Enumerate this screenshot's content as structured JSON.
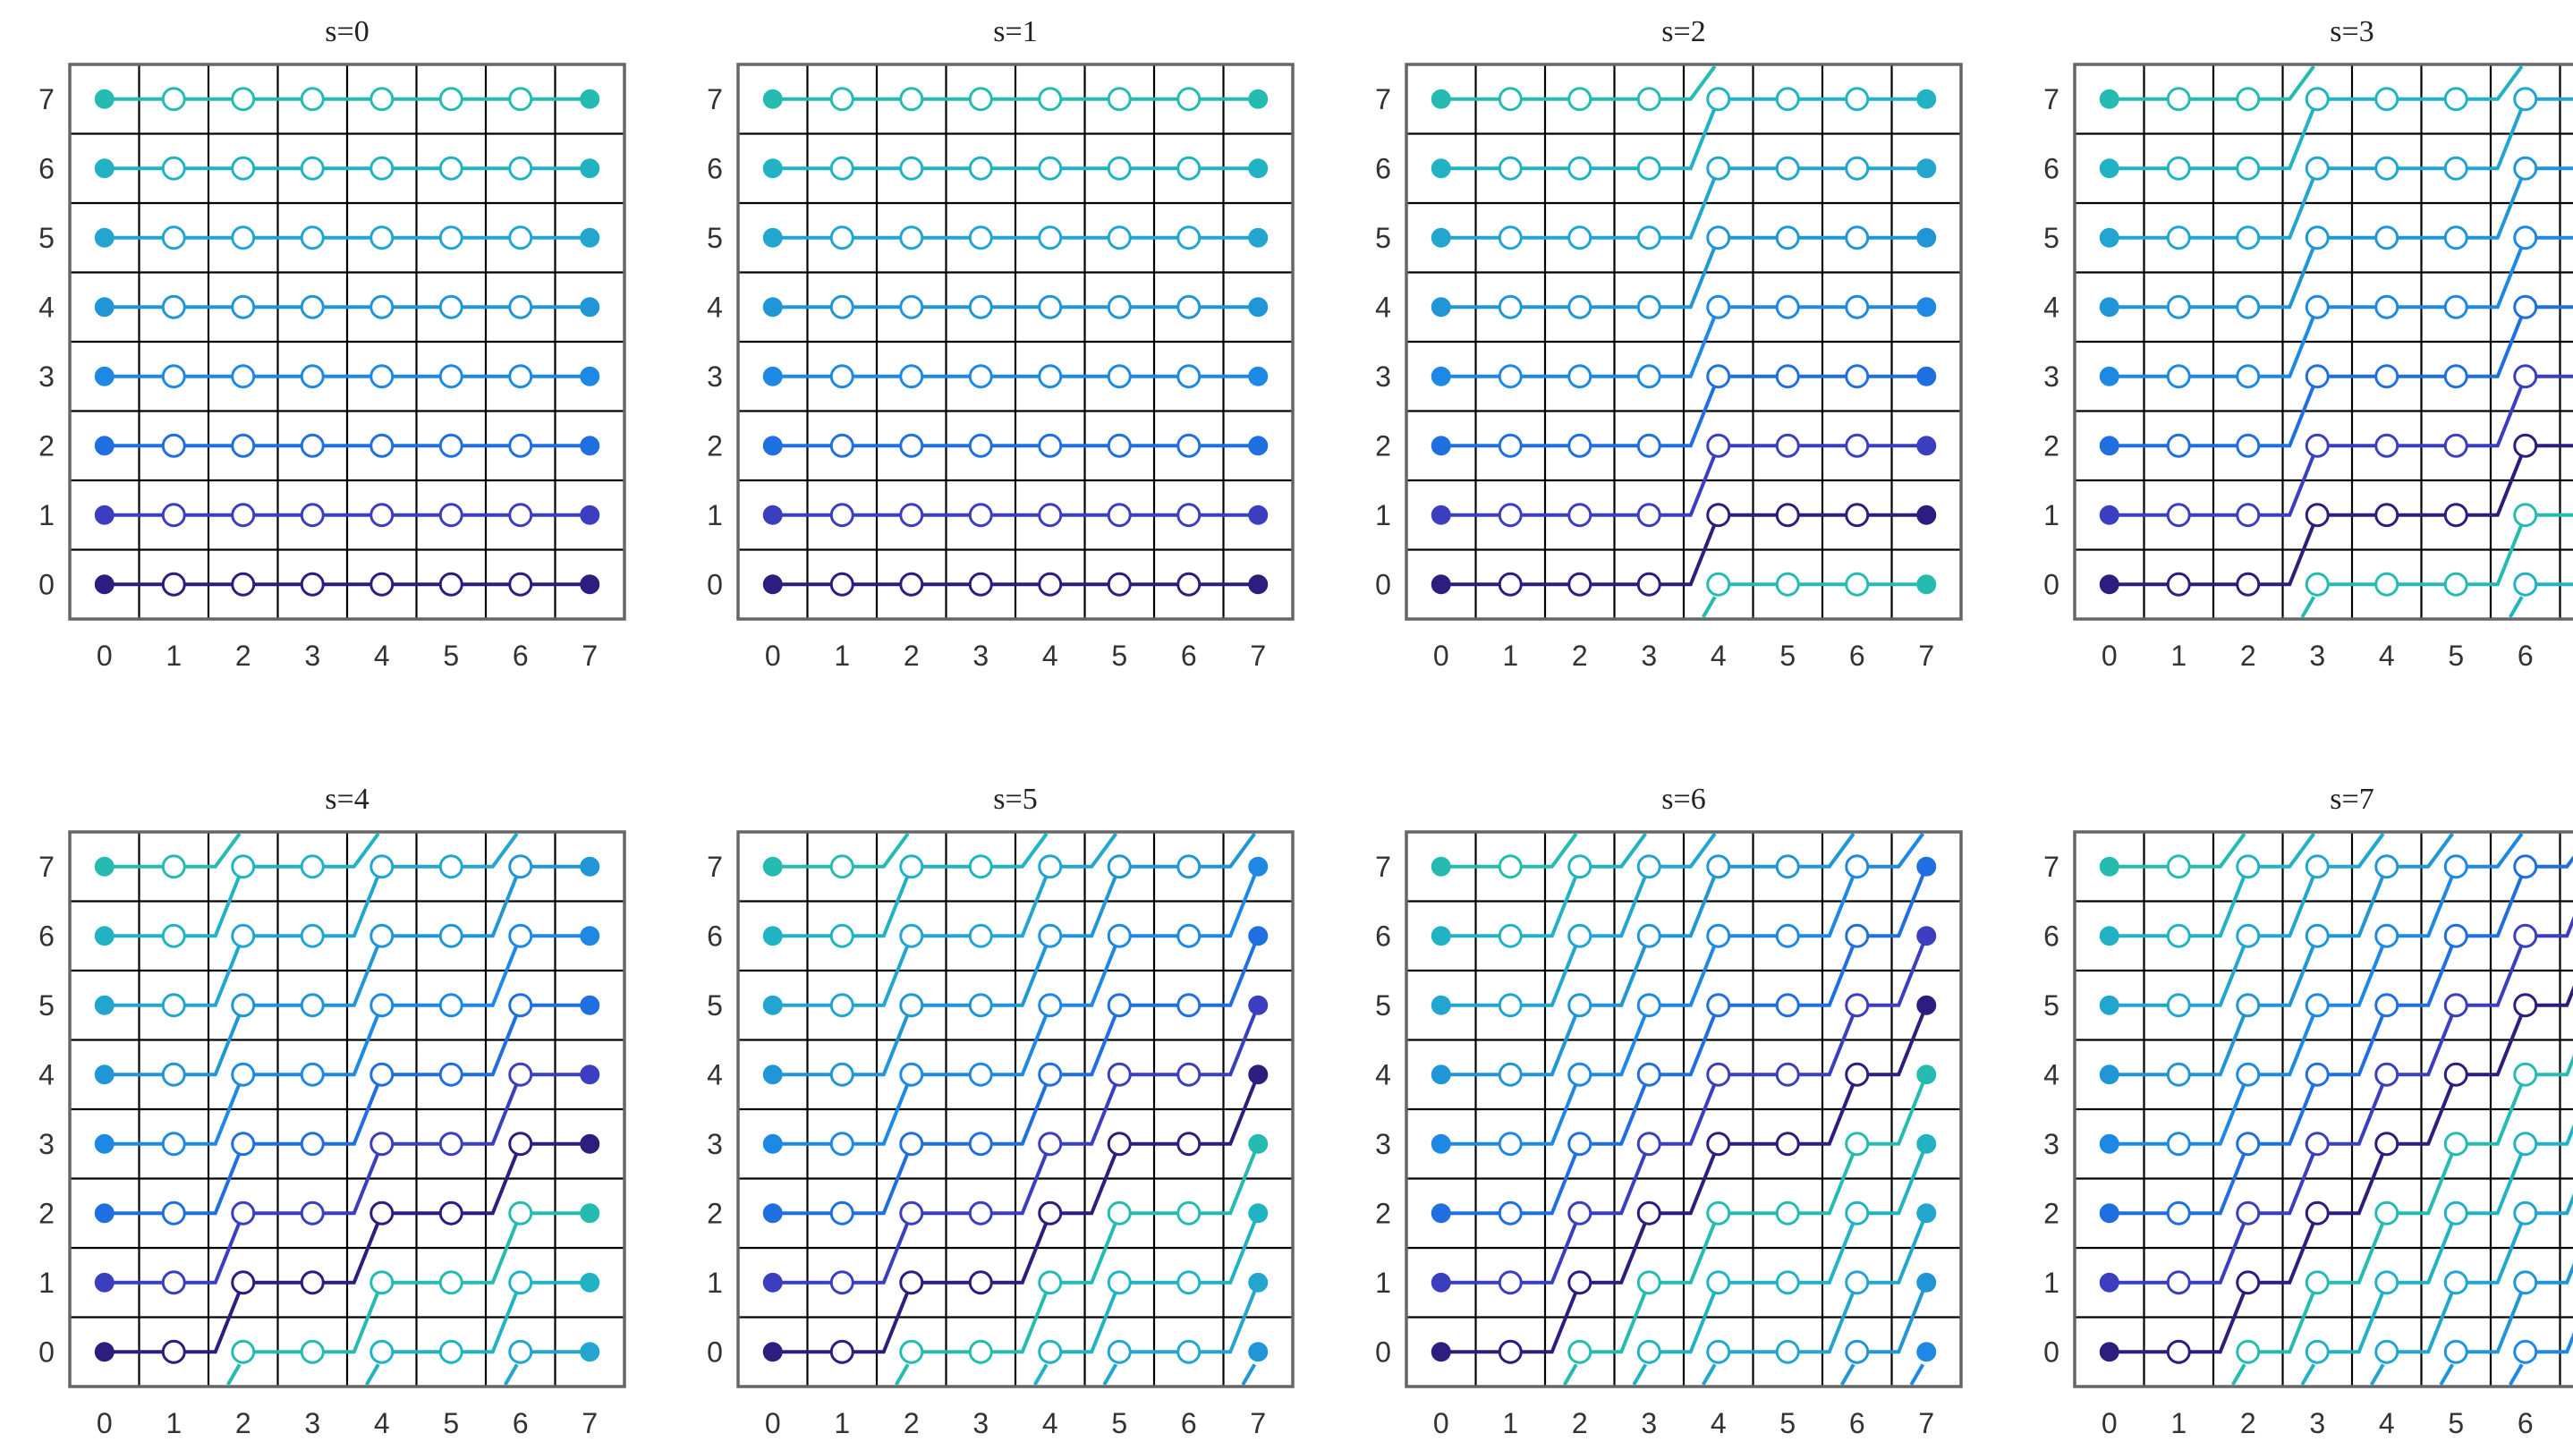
{
  "chart_data": {
    "type": "line",
    "layout": "2 rows x 4 columns of panels",
    "description_of_values": "Each panel s shows 8 series (one per starting row j=0..7). Series j starts at (0,j) and moves along x=0..7; its row at column c is (j + floor(c*s/8)) mod 8. Wrapped segments are drawn as short stubs at the bottom and top edges. First and last points of each series are filled markers, middle points are open circles.",
    "x_ticks": [
      "0",
      "1",
      "2",
      "3",
      "4",
      "5",
      "6",
      "7"
    ],
    "y_ticks": [
      "0",
      "1",
      "2",
      "3",
      "4",
      "5",
      "6",
      "7"
    ],
    "xlim": [
      -0.5,
      7.5
    ],
    "ylim": [
      -0.5,
      7.5
    ],
    "grid": true,
    "series_colors": [
      "#2c1d7e",
      "#3b3fbf",
      "#1f6fe0",
      "#1e88e5",
      "#2196d6",
      "#22a6cf",
      "#21b3c4",
      "#26bbb0"
    ],
    "panels": [
      {
        "title": "s=0",
        "s": 0
      },
      {
        "title": "s=1",
        "s": 1
      },
      {
        "title": "s=2",
        "s": 2
      },
      {
        "title": "s=3",
        "s": 3
      },
      {
        "title": "s=4",
        "s": 4
      },
      {
        "title": "s=5",
        "s": 5
      },
      {
        "title": "s=6",
        "s": 6
      },
      {
        "title": "s=7",
        "s": 7
      }
    ]
  }
}
